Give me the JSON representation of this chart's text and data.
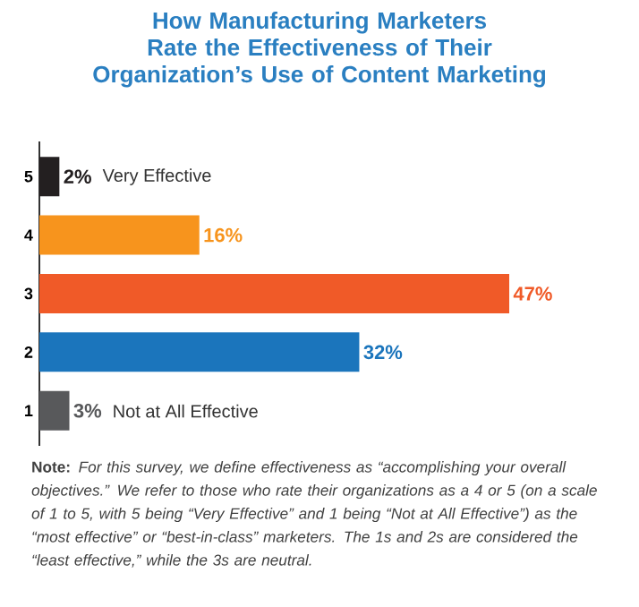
{
  "chart_data": {
    "type": "bar",
    "orientation": "horizontal",
    "title": "How Manufacturing Marketers Rate the Effectiveness of Their Organization’s Use of Content Marketing",
    "categories": [
      "5",
      "4",
      "3",
      "2",
      "1"
    ],
    "values": [
      2,
      16,
      47,
      32,
      3
    ],
    "value_labels": [
      "2%",
      "16%",
      "47%",
      "32%",
      "3%"
    ],
    "colors": [
      "#231f20",
      "#f7941d",
      "#f05a28",
      "#1b75bc",
      "#58595b"
    ],
    "annotations": [
      {
        "text": "Very Effective",
        "x": 2,
        "y": "5"
      },
      {
        "text": "Not at All Effective",
        "x": 3,
        "y": "1"
      },
      "**Note:** *For this survey, we define effectiveness as “accomplishing your overall objectives.” We refer to those who rate their organizations as a 4 or 5 (on a scale of 1 to 5, with 5 being “Very Effective” and 1 being “Not at All Effective”) as the “most effective” or “best-in-class” marketers. The 1s and 2s are considered the “least effective,” while the 3s are neutral.*"
    ]
  }
}
